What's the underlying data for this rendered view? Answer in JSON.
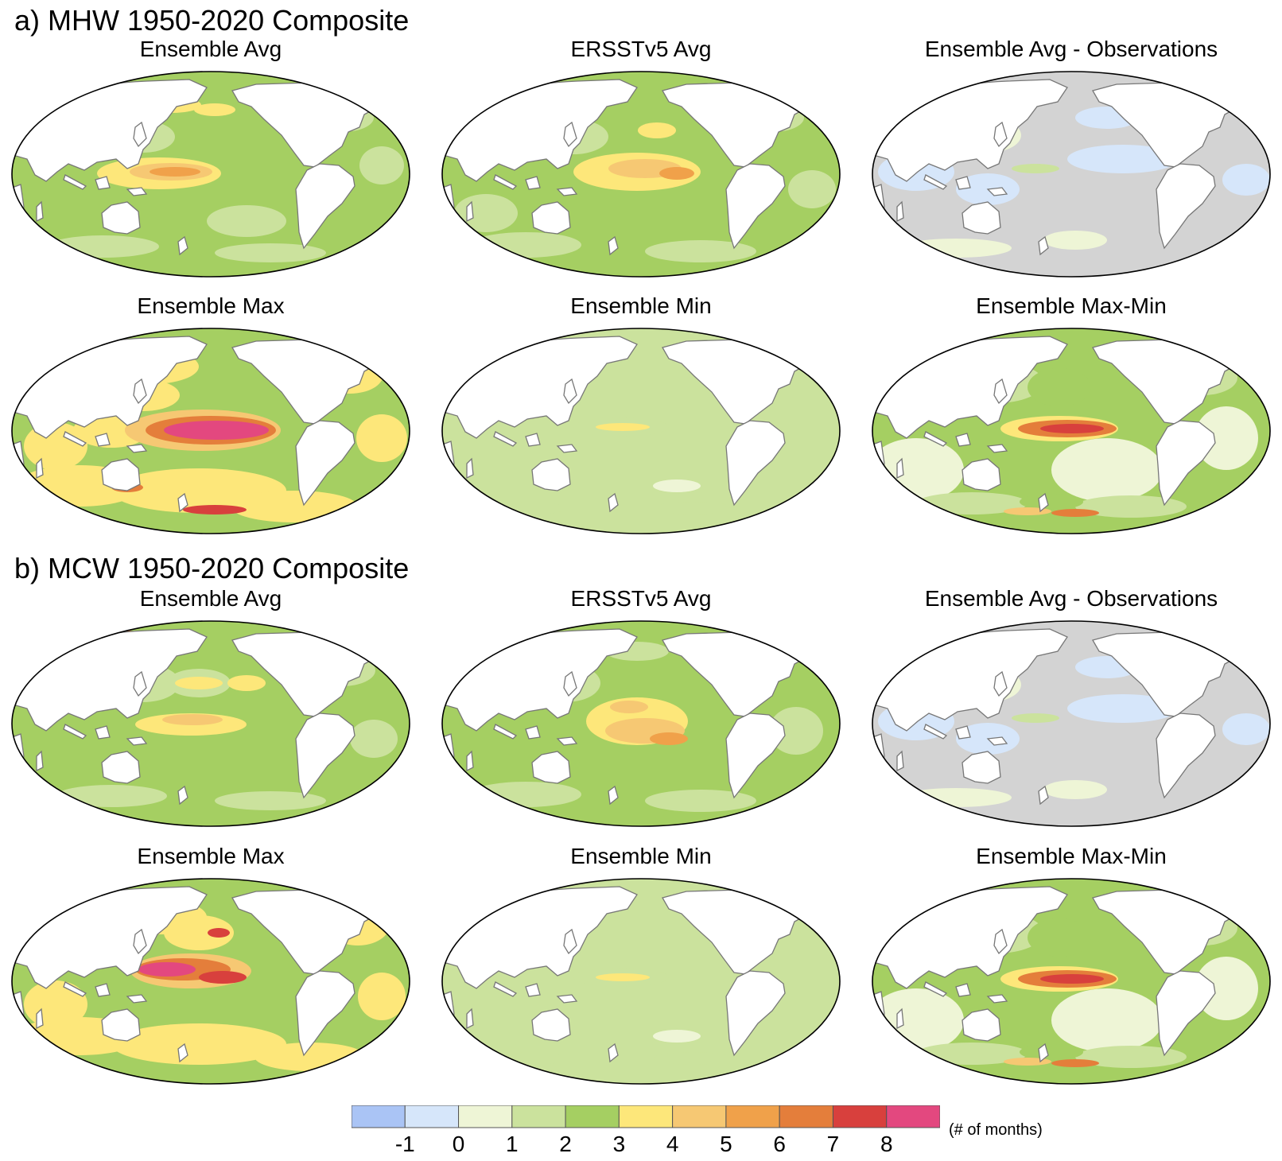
{
  "sections": [
    {
      "title": "a) MHW 1950-2020 Composite",
      "panels": [
        {
          "title": "Ensemble Avg",
          "kind": "avg_mhw"
        },
        {
          "title": "ERSSTv5 Avg",
          "kind": "obs_mhw"
        },
        {
          "title": "Ensemble Avg - Observations",
          "kind": "diff"
        },
        {
          "title": "Ensemble Max",
          "kind": "max_mhw"
        },
        {
          "title": "Ensemble Min",
          "kind": "min"
        },
        {
          "title": "Ensemble Max-Min",
          "kind": "range"
        }
      ]
    },
    {
      "title": "b) MCW 1950-2020 Composite",
      "panels": [
        {
          "title": "Ensemble Avg",
          "kind": "avg_mcw"
        },
        {
          "title": "ERSSTv5 Avg",
          "kind": "obs_mcw"
        },
        {
          "title": "Ensemble Avg - Observations",
          "kind": "diff"
        },
        {
          "title": "Ensemble Max",
          "kind": "max_mcw"
        },
        {
          "title": "Ensemble Min",
          "kind": "min"
        },
        {
          "title": "Ensemble Max-Min",
          "kind": "range"
        }
      ]
    }
  ],
  "colorbar": {
    "colors": [
      "#aac4f5",
      "#d6e6fa",
      "#eef5d6",
      "#cbe29d",
      "#a5cf62",
      "#fde77a",
      "#f6c873",
      "#f0a14a",
      "#e47e3b",
      "#d8403d",
      "#e3487f"
    ],
    "tick_labels": [
      "-1",
      "0",
      "1",
      "2",
      "3",
      "4",
      "5",
      "6",
      "7",
      "8"
    ],
    "units_label": "(# of months)"
  },
  "colors": {
    "land": "#ffffff",
    "coast": "#777777",
    "border": "#000000",
    "no_difference": "#d3d3d3"
  }
}
